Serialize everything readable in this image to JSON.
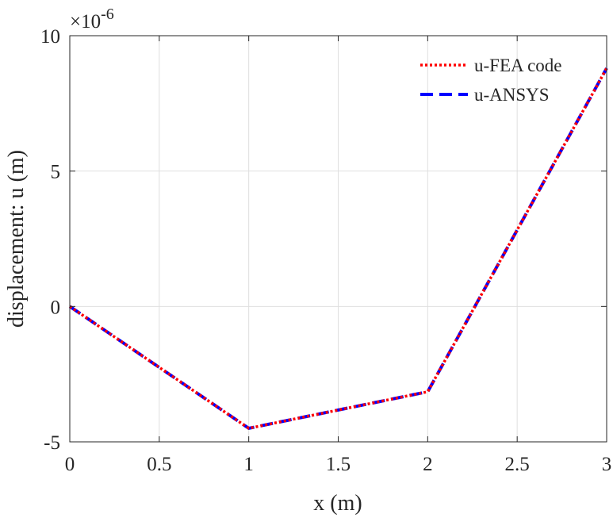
{
  "chart_data": {
    "type": "line",
    "xlabel": "x (m)",
    "ylabel": "displacement: u (m)",
    "y_multiplier": {
      "base": "×10",
      "exponent": "-6"
    },
    "xlim": [
      0,
      3
    ],
    "ylim": [
      -5,
      10
    ],
    "xticks": [
      0,
      0.5,
      1,
      1.5,
      2,
      2.5,
      3
    ],
    "xtick_labels": [
      "0",
      "0.5",
      "1",
      "1.5",
      "2",
      "2.5",
      "3"
    ],
    "yticks": [
      -5,
      0,
      5,
      10
    ],
    "ytick_labels": [
      "-5",
      "0",
      "5",
      "10"
    ],
    "grid": true,
    "legend_position": "top-right",
    "series": [
      {
        "name": "u-FEA code",
        "color": "#ff0000",
        "style": "dotted",
        "x": [
          0,
          1,
          2,
          3
        ],
        "y": [
          0,
          -4.5,
          -3.15,
          8.8
        ]
      },
      {
        "name": "u-ANSYS",
        "color": "#0000ff",
        "style": "dashed",
        "x": [
          0,
          1,
          2,
          3
        ],
        "y": [
          0,
          -4.5,
          -3.15,
          8.8
        ]
      }
    ]
  }
}
